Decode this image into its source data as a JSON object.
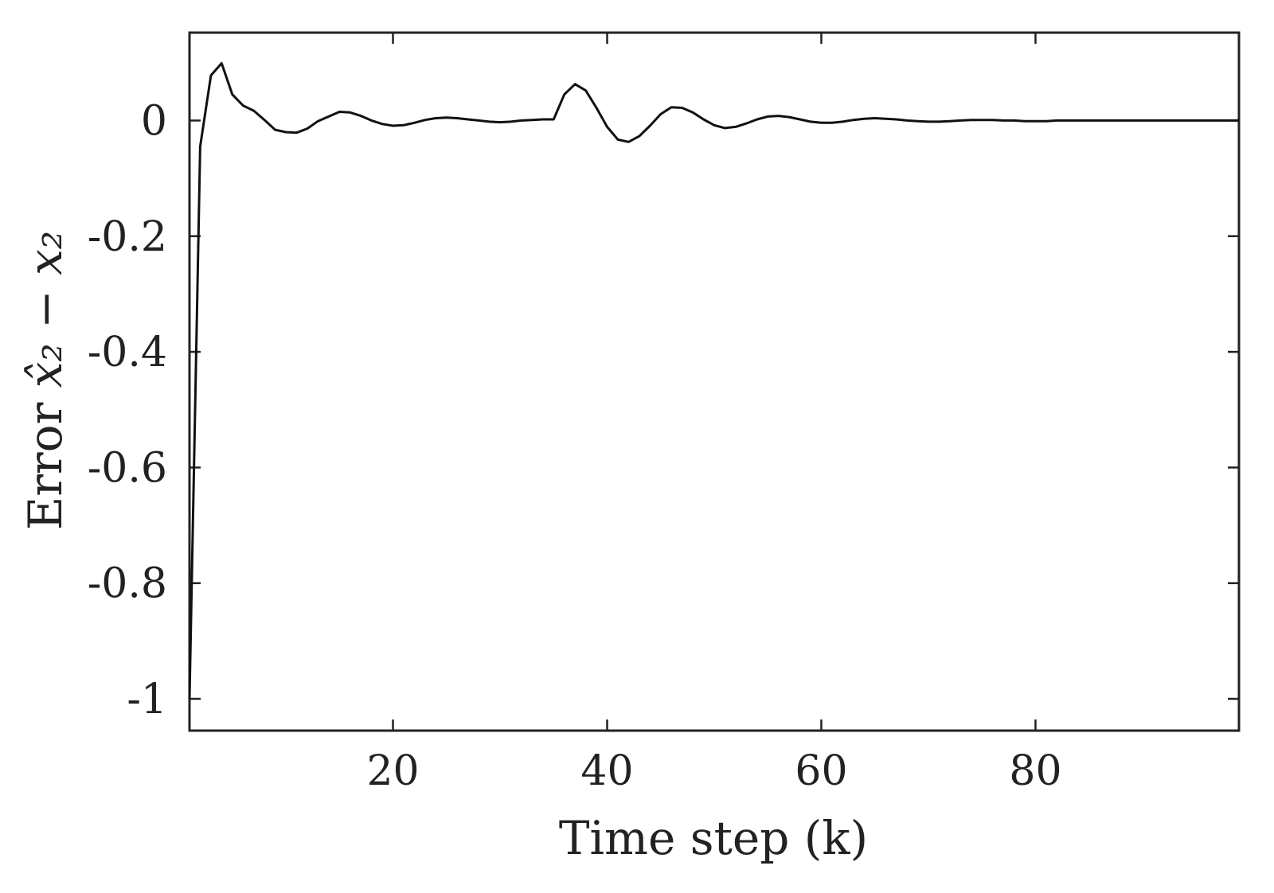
{
  "chart_data": {
    "type": "line",
    "title": "",
    "xlabel": "Time step (k)",
    "ylabel": {
      "prefix": "Error",
      "math": "x̂₂ − x₂"
    },
    "xlim": [
      1,
      99
    ],
    "ylim": [
      -1.055,
      0.152
    ],
    "xticks": [
      20,
      40,
      60,
      80
    ],
    "xtick_labels": [
      "20",
      "40",
      "60",
      "80"
    ],
    "yticks": [
      0,
      -0.2,
      -0.4,
      -0.6,
      -0.8,
      -1
    ],
    "ytick_labels": [
      "0",
      "-0.2",
      "-0.4",
      "-0.6",
      "-0.8",
      "-1"
    ],
    "grid": false,
    "line_color": "#111111",
    "series": [
      {
        "x": [
          1,
          2,
          3,
          4,
          5,
          6,
          7,
          8,
          9,
          10,
          11,
          12,
          13,
          14,
          15,
          16,
          17,
          18,
          19,
          20,
          21,
          22,
          23,
          24,
          25,
          26,
          27,
          28,
          29,
          30,
          31,
          32,
          33,
          34,
          35,
          36,
          37,
          38,
          39,
          40,
          41,
          42,
          43,
          44,
          45,
          46,
          47,
          48,
          49,
          50,
          51,
          52,
          53,
          54,
          55,
          56,
          57,
          58,
          59,
          60,
          61,
          62,
          63,
          64,
          65,
          66,
          67,
          68,
          69,
          70,
          71,
          72,
          73,
          74,
          75,
          76,
          77,
          78,
          79,
          80,
          81,
          82,
          83,
          84,
          85,
          86,
          87,
          88,
          89,
          90,
          91,
          92,
          93,
          94,
          95,
          96,
          97,
          98,
          99
        ],
        "y": [
          -1.0,
          -0.045,
          0.078,
          0.099,
          0.045,
          0.026,
          0.017,
          0.001,
          -0.016,
          -0.02,
          -0.021,
          -0.014,
          -0.001,
          0.007,
          0.015,
          0.014,
          0.008,
          0.0,
          -0.006,
          -0.009,
          -0.008,
          -0.004,
          0.001,
          0.004,
          0.005,
          0.004,
          0.002,
          0.0,
          -0.002,
          -0.003,
          -0.002,
          0.0,
          0.001,
          0.002,
          0.002,
          0.045,
          0.063,
          0.052,
          0.022,
          -0.011,
          -0.033,
          -0.037,
          -0.027,
          -0.009,
          0.011,
          0.023,
          0.022,
          0.014,
          0.002,
          -0.008,
          -0.013,
          -0.011,
          -0.005,
          0.002,
          0.007,
          0.008,
          0.006,
          0.002,
          -0.002,
          -0.004,
          -0.004,
          -0.002,
          0.001,
          0.003,
          0.004,
          0.003,
          0.002,
          0.0,
          -0.001,
          -0.002,
          -0.002,
          -0.001,
          0.0,
          0.001,
          0.001,
          0.001,
          0.0,
          0.0,
          -0.001,
          -0.001,
          -0.001,
          0.0,
          0.0,
          0.0,
          0.0,
          0.0,
          0.0,
          0.0,
          0.0,
          0.0,
          0.0,
          0.0,
          0.0,
          0.0,
          0.0,
          0.0,
          0.0,
          0.0,
          0.0
        ]
      }
    ]
  }
}
